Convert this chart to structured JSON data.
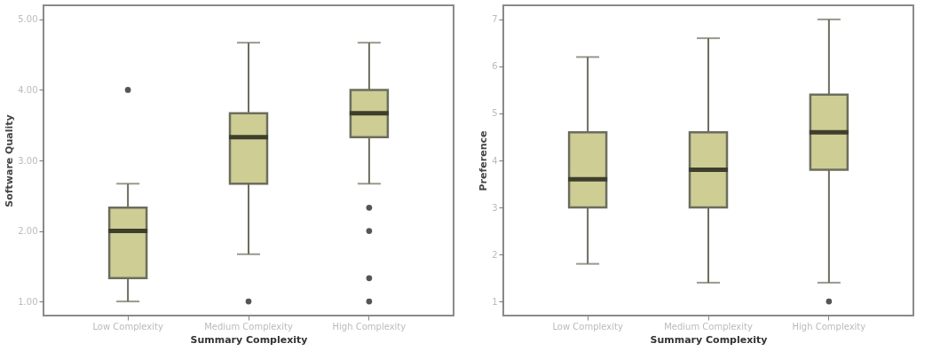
{
  "chart_data": [
    {
      "type": "box",
      "ylabel": "Software Quality",
      "xlabel": "Summary Complexity",
      "categories": [
        "Low Complexity",
        "Medium Complexity",
        "High Complexity"
      ],
      "color": "#cdcd94",
      "ylim": [
        0.8,
        5.2
      ],
      "yticks": [
        {
          "value": 1,
          "label": "1.00"
        },
        {
          "value": 2,
          "label": "2.00"
        },
        {
          "value": 3,
          "label": "3.00"
        },
        {
          "value": 4,
          "label": "4.00"
        },
        {
          "value": 5,
          "label": "5.00"
        }
      ],
      "grid": false,
      "boxes": [
        {
          "low": 1,
          "q1": 1.33,
          "median": 2,
          "q3": 2.33,
          "high": 2.67,
          "outliers": [
            4
          ]
        },
        {
          "low": 1.67,
          "q1": 2.67,
          "median": 3.33,
          "q3": 3.67,
          "high": 4.67,
          "outliers": [
            1
          ]
        },
        {
          "low": 2.67,
          "q1": 3.33,
          "median": 3.67,
          "q3": 4,
          "high": 4.67,
          "outliers": [
            2.33,
            2,
            1.33,
            1
          ]
        }
      ]
    },
    {
      "type": "box",
      "ylabel": "Preference",
      "xlabel": "Summary Complexity",
      "categories": [
        "Low Complexity",
        "Medium Complexity",
        "High Complexity"
      ],
      "color": "#cdcd94",
      "ylim": [
        0.7,
        7.3
      ],
      "yticks": [
        1,
        2,
        3,
        4,
        5,
        6,
        7
      ],
      "grid": false,
      "boxes": [
        {
          "low": 1.8,
          "q1": 3,
          "median": 3.6,
          "q3": 4.6,
          "high": 6.2
        },
        {
          "low": 1.4,
          "q1": 3,
          "median": 3.8,
          "q3": 4.6,
          "high": 6.6
        },
        {
          "low": 1.4,
          "q1": 3.8,
          "median": 4.6,
          "q3": 5.4,
          "high": 7,
          "outliers": [
            1
          ]
        }
      ]
    }
  ]
}
